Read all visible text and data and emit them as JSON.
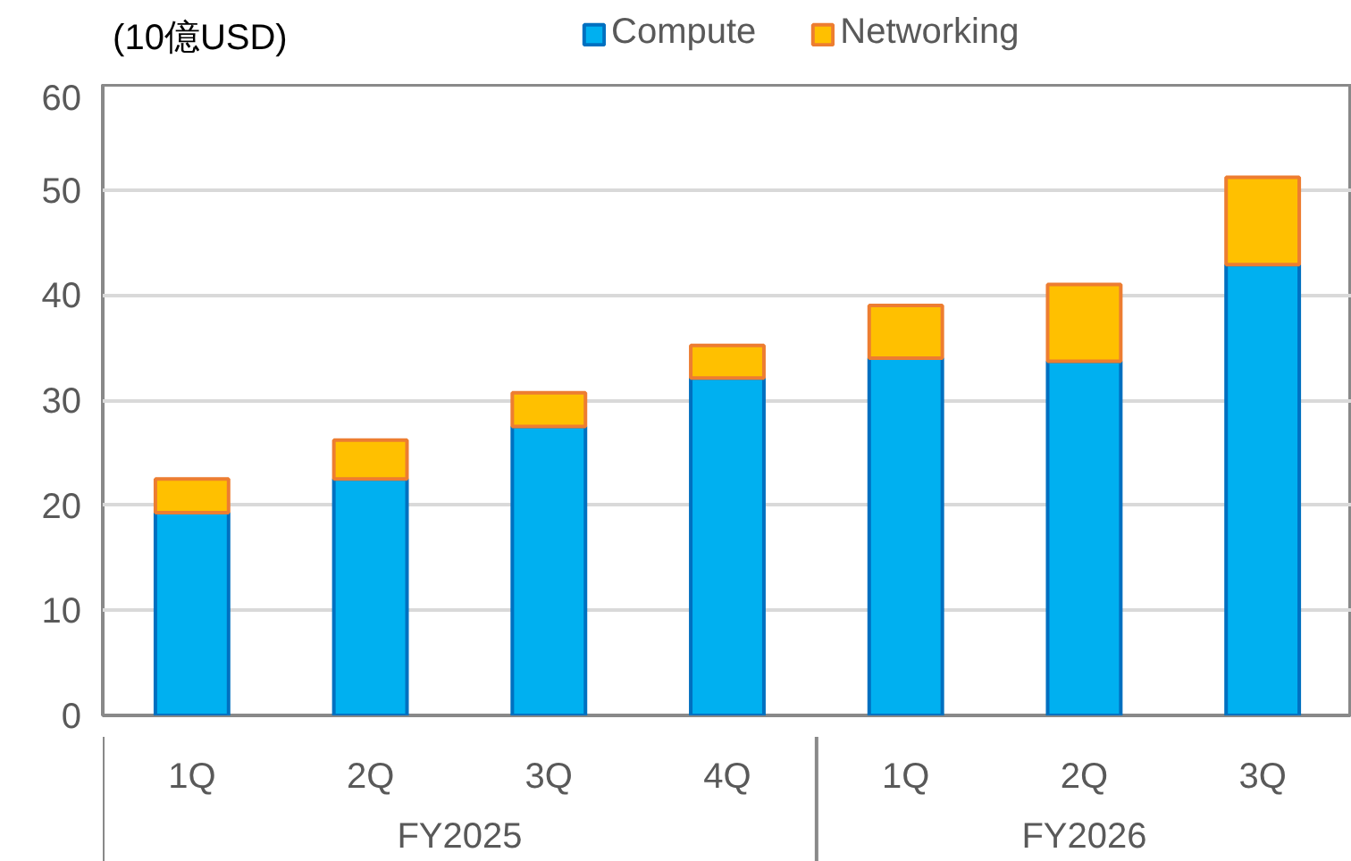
{
  "chart_data": {
    "type": "bar",
    "stacked": true,
    "ylabel": "(10億USD)",
    "categories": [
      "1Q",
      "2Q",
      "3Q",
      "4Q",
      "1Q",
      "2Q",
      "3Q"
    ],
    "series": [
      {
        "name": "Compute",
        "color": "#00b0f0",
        "values": [
          19.3,
          22.5,
          27.5,
          32.1,
          34.0,
          33.7,
          42.9
        ]
      },
      {
        "name": "Networking",
        "color": "#ffc000",
        "values": [
          3.2,
          3.7,
          3.2,
          3.1,
          5.0,
          7.3,
          8.3
        ]
      }
    ],
    "annotations": [
      "FY2025",
      "FY2026"
    ],
    "ylim": [
      0,
      60
    ],
    "yticks": [
      0,
      10,
      20,
      30,
      40,
      50,
      60
    ],
    "grid": "y",
    "legend": "top"
  }
}
